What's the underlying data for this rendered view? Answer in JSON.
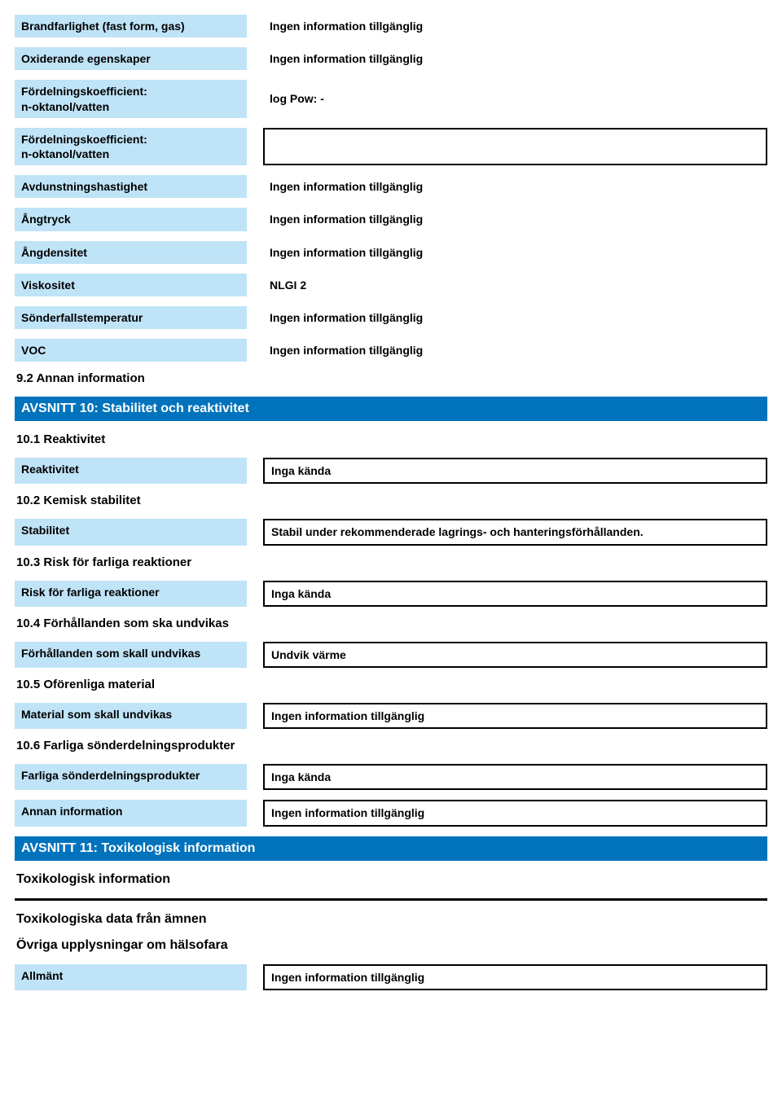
{
  "colors": {
    "label_bg": "#bfe3f7",
    "section_bg": "#0073bc",
    "section_fg": "#ffffff",
    "border": "#000000",
    "page_bg": "#ffffff",
    "text": "#000000"
  },
  "group1": [
    {
      "label": "Brandfarlighet (fast form, gas)",
      "value": "Ingen information tillgänglig",
      "bordered": false
    },
    {
      "label": "Oxiderande egenskaper",
      "value": "Ingen information tillgänglig",
      "bordered": false
    },
    {
      "label": "Fördelningskoefficient:\nn-oktanol/vatten",
      "value": "log Pow:     -",
      "bordered": false
    },
    {
      "label": "Fördelningskoefficient:\nn-oktanol/vatten",
      "value": "",
      "bordered": true
    },
    {
      "label": "Avdunstningshastighet",
      "value": "Ingen information tillgänglig",
      "bordered": false
    },
    {
      "label": "Ångtryck",
      "value": "Ingen information tillgänglig",
      "bordered": false
    },
    {
      "label": "Ångdensitet",
      "value": "Ingen information tillgänglig",
      "bordered": false
    },
    {
      "label": "Viskositet",
      "value": "NLGI 2",
      "bordered": false
    },
    {
      "label": "Sönderfallstemperatur",
      "value": "Ingen information tillgänglig",
      "bordered": false
    },
    {
      "label": "VOC",
      "value": "Ingen information tillgänglig",
      "bordered": false
    }
  ],
  "sub_9_2": "9.2 Annan information",
  "section10": {
    "title": "AVSNITT 10: Stabilitet och reaktivitet",
    "items": [
      {
        "heading": "10.1 Reaktivitet",
        "rows": [
          {
            "label": "Reaktivitet",
            "value": "Inga kända",
            "bordered": true
          }
        ]
      },
      {
        "heading": "10.2 Kemisk stabilitet",
        "rows": [
          {
            "label": "Stabilitet",
            "value": "Stabil under rekommenderade lagrings- och hanteringsförhållanden.",
            "bordered": true
          }
        ]
      },
      {
        "heading": "10.3 Risk för farliga reaktioner",
        "rows": [
          {
            "label": "Risk för farliga reaktioner",
            "value": "Inga kända",
            "bordered": true
          }
        ]
      },
      {
        "heading": "10.4 Förhållanden som ska undvikas",
        "rows": [
          {
            "label": "Förhållanden som skall undvikas",
            "value": "Undvik värme",
            "bordered": true
          }
        ]
      },
      {
        "heading": "10.5 Oförenliga material",
        "rows": [
          {
            "label": "Material som skall undvikas",
            "value": "Ingen information tillgänglig",
            "bordered": true
          }
        ]
      },
      {
        "heading": "10.6 Farliga sönderdelningsprodukter",
        "rows": [
          {
            "label": "Farliga sönderdelningsprodukter",
            "value": "Inga kända",
            "bordered": true
          },
          {
            "label": "Annan information",
            "value": "Ingen information tillgänglig",
            "bordered": true
          }
        ]
      }
    ]
  },
  "section11": {
    "title": "AVSNITT 11: Toxikologisk information",
    "sub1": "Toxikologisk information",
    "sub2": "Toxikologiska data från ämnen",
    "ovriga": "Övriga upplysningar om hälsofara",
    "rows": [
      {
        "label": "Allmänt",
        "value": "Ingen information tillgänglig",
        "bordered": true
      }
    ]
  }
}
